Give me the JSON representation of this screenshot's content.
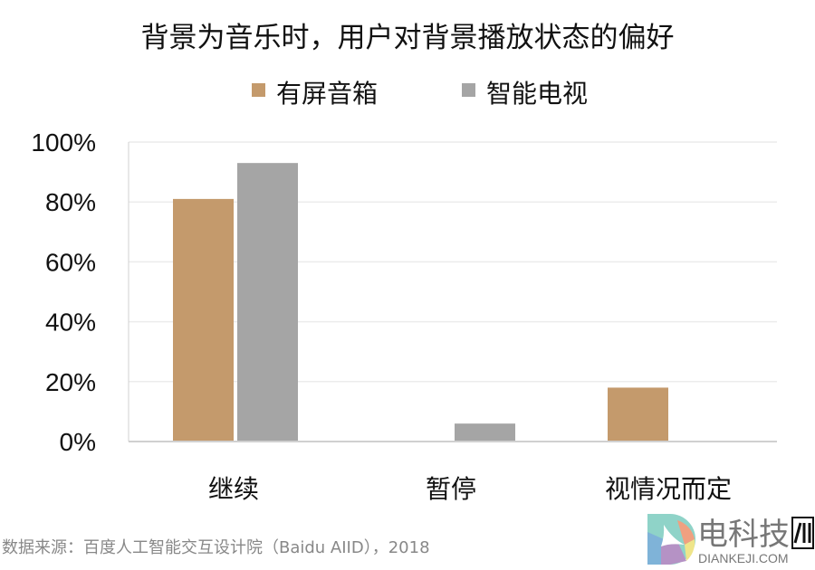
{
  "chart_data": {
    "type": "bar",
    "title": "背景为音乐时，用户对背景播放状态的偏好",
    "categories": [
      "继续",
      "暂停",
      "视情况而定"
    ],
    "series": [
      {
        "name": "有屏音箱",
        "color": "#C49A6C",
        "values": [
          81,
          0,
          18
        ]
      },
      {
        "name": "智能电视",
        "color": "#A5A5A5",
        "values": [
          93,
          6,
          0
        ]
      }
    ],
    "ylim": [
      0,
      100
    ],
    "yticks": [
      0,
      20,
      40,
      60,
      80,
      100
    ],
    "ytick_labels": [
      "0%",
      "20%",
      "40%",
      "60%",
      "80%",
      "100%"
    ],
    "xlabel": "",
    "ylabel": "",
    "grid": true,
    "legend_position": "top-center"
  },
  "source": "数据来源：百度人工智能交互设计院（Baidu AIID），2018",
  "logo": {
    "text": "电科技",
    "sub": "DIANKEJI.COM"
  }
}
